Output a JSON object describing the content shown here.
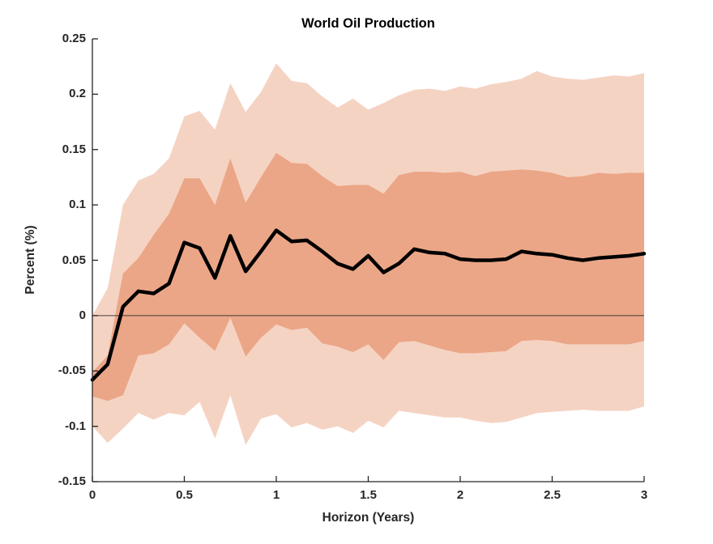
{
  "chart_data": {
    "type": "line",
    "title": "World Oil Production",
    "xlabel": "Horizon (Years)",
    "ylabel": "Percent (%)",
    "xlim": [
      0,
      3
    ],
    "ylim": [
      -0.15,
      0.25
    ],
    "grid": false,
    "legend": null,
    "zero_line": true,
    "axis_color": "#262626",
    "background_color": "#ffffff",
    "x_ticks": {
      "values": [
        0,
        0.5,
        1,
        1.5,
        2,
        2.5,
        3
      ],
      "labels": [
        "0",
        "0.5",
        "1",
        "1.5",
        "2",
        "2.5",
        "3"
      ]
    },
    "y_ticks": {
      "values": [
        -0.15,
        -0.1,
        -0.05,
        0,
        0.05,
        0.1,
        0.15,
        0.2,
        0.25
      ],
      "labels": [
        "-0.15",
        "-0.1",
        "-0.05",
        "0",
        "0.05",
        "0.1",
        "0.15",
        "0.2",
        "0.25"
      ]
    },
    "x": [
      0,
      0.0833,
      0.1667,
      0.25,
      0.3333,
      0.4167,
      0.5,
      0.5833,
      0.6667,
      0.75,
      0.8333,
      0.9167,
      1,
      1.0833,
      1.1667,
      1.25,
      1.3333,
      1.4167,
      1.5,
      1.5833,
      1.6667,
      1.75,
      1.8333,
      1.9167,
      2,
      2.0833,
      2.1667,
      2.25,
      2.3333,
      2.4167,
      2.5,
      2.5833,
      2.6667,
      2.75,
      2.8333,
      2.9167,
      3
    ],
    "series": [
      {
        "name": "point-estimate",
        "color": "#000000",
        "line_width": 4.5,
        "values": [
          -0.058,
          -0.044,
          0.008,
          0.022,
          0.02,
          0.029,
          0.066,
          0.061,
          0.034,
          0.072,
          0.04,
          0.058,
          0.077,
          0.067,
          0.068,
          0.058,
          0.047,
          0.042,
          0.054,
          0.039,
          0.047,
          0.06,
          0.057,
          0.056,
          0.051,
          0.05,
          0.05,
          0.051,
          0.058,
          0.056,
          0.055,
          0.052,
          0.05,
          0.052,
          0.053,
          0.054,
          0.056
        ]
      }
    ],
    "bands": [
      {
        "name": "outer-credible-band",
        "color": "#f5d3c3",
        "upper": [
          0.0,
          0.025,
          0.1,
          0.122,
          0.128,
          0.142,
          0.18,
          0.185,
          0.168,
          0.21,
          0.184,
          0.202,
          0.228,
          0.212,
          0.21,
          0.198,
          0.188,
          0.196,
          0.186,
          0.192,
          0.199,
          0.204,
          0.205,
          0.203,
          0.207,
          0.205,
          0.209,
          0.211,
          0.214,
          0.221,
          0.216,
          0.214,
          0.213,
          0.215,
          0.217,
          0.216,
          0.219
        ],
        "lower": [
          -0.1,
          -0.115,
          -0.102,
          -0.088,
          -0.094,
          -0.088,
          -0.09,
          -0.078,
          -0.111,
          -0.072,
          -0.117,
          -0.093,
          -0.089,
          -0.101,
          -0.097,
          -0.103,
          -0.1,
          -0.106,
          -0.095,
          -0.101,
          -0.086,
          -0.088,
          -0.09,
          -0.092,
          -0.092,
          -0.095,
          -0.097,
          -0.096,
          -0.092,
          -0.088,
          -0.087,
          -0.086,
          -0.085,
          -0.086,
          -0.086,
          -0.086,
          -0.082
        ]
      },
      {
        "name": "inner-credible-band",
        "color": "#eba687",
        "upper": [
          -0.051,
          -0.036,
          0.038,
          0.052,
          0.073,
          0.092,
          0.124,
          0.124,
          0.1,
          0.142,
          0.102,
          0.125,
          0.147,
          0.138,
          0.137,
          0.126,
          0.117,
          0.118,
          0.118,
          0.11,
          0.127,
          0.13,
          0.13,
          0.129,
          0.13,
          0.126,
          0.13,
          0.131,
          0.132,
          0.131,
          0.129,
          0.125,
          0.126,
          0.129,
          0.128,
          0.129,
          0.129
        ],
        "lower": [
          -0.073,
          -0.077,
          -0.072,
          -0.036,
          -0.034,
          -0.026,
          -0.007,
          -0.02,
          -0.032,
          -0.002,
          -0.037,
          -0.02,
          -0.008,
          -0.013,
          -0.011,
          -0.025,
          -0.028,
          -0.033,
          -0.026,
          -0.04,
          -0.024,
          -0.023,
          -0.027,
          -0.031,
          -0.034,
          -0.034,
          -0.033,
          -0.032,
          -0.023,
          -0.022,
          -0.023,
          -0.026,
          -0.026,
          -0.026,
          -0.026,
          -0.026,
          -0.023
        ]
      }
    ]
  }
}
